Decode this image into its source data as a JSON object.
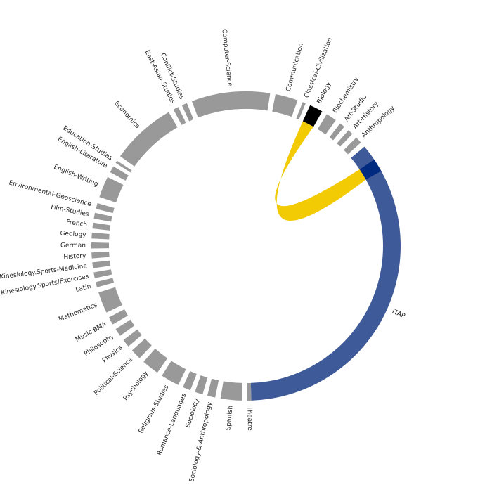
{
  "chart_data": {
    "type": "chord",
    "title": "",
    "segments": [
      {
        "label": "Theatre",
        "start": 178,
        "end": 179.6
      },
      {
        "label": "Spanish",
        "start": 181.5,
        "end": 189.5
      },
      {
        "label": "Sociology-&-Anthropology",
        "start": 191.5,
        "end": 194.5
      },
      {
        "label": "Sociology",
        "start": 196.3,
        "end": 199.3
      },
      {
        "label": "Romance-Languages",
        "start": 201.1,
        "end": 204.1
      },
      {
        "label": "Religious-Studies",
        "start": 206,
        "end": 213
      },
      {
        "label": "Psychology",
        "start": 215,
        "end": 221.5
      },
      {
        "label": "Political-Science",
        "start": 223.5,
        "end": 227.5
      },
      {
        "label": "Physics",
        "start": 229.5,
        "end": 232.5
      },
      {
        "label": "Philosophy",
        "start": 234.5,
        "end": 237.5
      },
      {
        "label": "Music.BMA",
        "start": 239.5,
        "end": 242.5
      },
      {
        "label": "Mathematics",
        "start": 244.5,
        "end": 252.5
      },
      {
        "label": "Latin",
        "start": 254.5,
        "end": 256.5
      },
      {
        "label": "Kinesiology.Sports/Exercises",
        "start": 258,
        "end": 260.2
      },
      {
        "label": "Kinesiology.Sports-Medicine",
        "start": 261.7,
        "end": 263.9
      },
      {
        "label": "History",
        "start": 265.4,
        "end": 267.6
      },
      {
        "label": "German",
        "start": 269.1,
        "end": 271.3
      },
      {
        "label": "Geology",
        "start": 272.8,
        "end": 275
      },
      {
        "label": "French",
        "start": 276.5,
        "end": 278.7
      },
      {
        "label": "Film-Studies",
        "start": 280.2,
        "end": 282.4
      },
      {
        "label": "Environmental-Geoscience",
        "start": 283.9,
        "end": 286.1
      },
      {
        "label": "English-Writing",
        "start": 288.5,
        "end": 296.5
      },
      {
        "label": "English-Literature",
        "start": 298.5,
        "end": 301
      },
      {
        "label": "Education-Studies",
        "start": 302.5,
        "end": 303.5
      },
      {
        "label": "Economics",
        "start": 305.5,
        "end": 330
      },
      {
        "label": "East-Asian-Studies",
        "start": 332,
        "end": 334
      },
      {
        "label": "Conflict-Studies",
        "start": 335.5,
        "end": 337.5
      },
      {
        "label": "Computer-Science",
        "start": 339.5,
        "end": 369
      },
      {
        "label": "Communication",
        "start": 371,
        "end": 379.5
      },
      {
        "label": "Classical-Civilization",
        "start": 381.5,
        "end": 382.7
      },
      {
        "label": "Biology",
        "start": 384.5,
        "end": 389.5
      },
      {
        "label": "Biochemistry",
        "start": 391.5,
        "end": 395.5
      },
      {
        "label": "Art-Studio",
        "start": 397.5,
        "end": 399.5
      },
      {
        "label": "Art-History",
        "start": 401.5,
        "end": 403.5
      },
      {
        "label": "Anthropology",
        "start": 405.5,
        "end": 408
      },
      {
        "label": "ITAP",
        "start": 410,
        "end": 538
      }
    ],
    "highlight": {
      "source": "ITAP",
      "target": "Biology",
      "source_range": [
        416,
        421
      ],
      "target_range": [
        384.5,
        389.5
      ]
    },
    "colors": {
      "segment": "#999999",
      "itap": "#3f5a99",
      "itap_highlight": "#002a80",
      "biology_highlight": "#000000",
      "chord": "#f2cb05"
    }
  }
}
